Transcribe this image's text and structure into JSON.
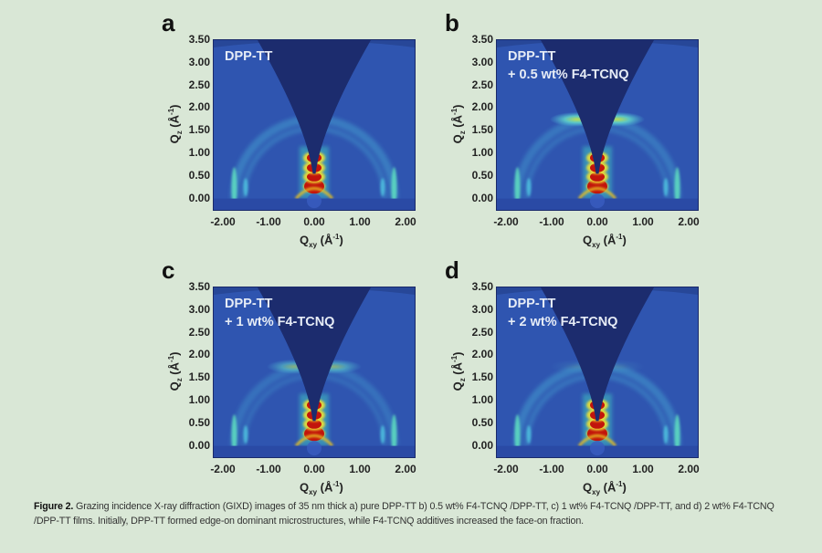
{
  "figure": {
    "caption_label": "Figure 2.",
    "caption_text": "Grazing incidence X-ray diffraction (GIXD) images of 35 nm thick a) pure DPP-TT b) 0.5 wt% F4-TCNQ /DPP-TT, c) 1 wt% F4-TCNQ /DPP-TT, and d) 2 wt% F4-TCNQ /DPP-TT films. Initially, DPP-TT formed edge-on dominant microstructures, while F4-TCNQ additives increased the face-on fraction.",
    "colors": {
      "background": "#d9e7d6",
      "plot_bg": "#2f55b0",
      "shadow": "#1c2c6e",
      "ring": "#4fc2e0",
      "hot": "#c2140c"
    }
  },
  "chart_data": [
    {
      "type": "heatmap",
      "panel": "a",
      "title": "DPP-TT",
      "xlabel": "Qxy (Å-1)",
      "ylabel": "Qz (Å-1)",
      "xticks": [
        "-2.00",
        "-1.00",
        "0.00",
        "1.00",
        "2.00"
      ],
      "yticks": [
        "3.50",
        "3.00",
        "2.50",
        "2.00",
        "1.50",
        "1.00",
        "0.50",
        "0.00"
      ],
      "xlim": [
        -2.2,
        2.2
      ],
      "ylim": [
        -0.25,
        3.5
      ],
      "features": {
        "ring_q": 1.75,
        "ring_intensity": 0.35,
        "face_on_peak_qz": 1.75,
        "face_on_intensity": 0.0,
        "lamellar_peaks_qz": [
          0.27,
          0.48,
          0.68,
          0.9
        ],
        "inplane_peaks_qxy": [
          1.5,
          1.75
        ]
      }
    },
    {
      "type": "heatmap",
      "panel": "b",
      "title": "DPP-TT\n+ 0.5 wt% F4-TCNQ",
      "xlabel": "Qxy (Å-1)",
      "ylabel": "Qz (Å-1)",
      "xticks": [
        "-2.00",
        "-1.00",
        "0.00",
        "1.00",
        "2.00"
      ],
      "yticks": [
        "3.50",
        "3.00",
        "2.50",
        "2.00",
        "1.50",
        "1.00",
        "0.50",
        "0.00"
      ],
      "xlim": [
        -2.2,
        2.2
      ],
      "ylim": [
        -0.25,
        3.5
      ],
      "features": {
        "ring_q": 1.75,
        "ring_intensity": 0.3,
        "face_on_peak_qz": 1.75,
        "face_on_intensity": 0.9,
        "lamellar_peaks_qz": [
          0.27,
          0.48,
          0.68,
          0.9
        ],
        "inplane_peaks_qxy": [
          1.5,
          1.75
        ]
      }
    },
    {
      "type": "heatmap",
      "panel": "c",
      "title": "DPP-TT\n+ 1 wt% F4-TCNQ",
      "xlabel": "Qxy (Å-1)",
      "ylabel": "Qz (Å-1)",
      "xticks": [
        "-2.00",
        "-1.00",
        "0.00",
        "1.00",
        "2.00"
      ],
      "yticks": [
        "3.50",
        "3.00",
        "2.50",
        "2.00",
        "1.50",
        "1.00",
        "0.50",
        "0.00"
      ],
      "xlim": [
        -2.2,
        2.2
      ],
      "ylim": [
        -0.25,
        3.5
      ],
      "features": {
        "ring_q": 1.75,
        "ring_intensity": 0.25,
        "face_on_peak_qz": 1.75,
        "face_on_intensity": 0.55,
        "lamellar_peaks_qz": [
          0.27,
          0.48,
          0.68,
          0.9
        ],
        "inplane_peaks_qxy": [
          1.5,
          1.75
        ]
      }
    },
    {
      "type": "heatmap",
      "panel": "d",
      "title": "DPP-TT\n+ 2 wt% F4-TCNQ",
      "xlabel": "Qxy (Å-1)",
      "ylabel": "Qz (Å-1)",
      "xticks": [
        "-2.00",
        "-1.00",
        "0.00",
        "1.00",
        "2.00"
      ],
      "yticks": [
        "3.50",
        "3.00",
        "2.50",
        "2.00",
        "1.50",
        "1.00",
        "0.50",
        "0.00"
      ],
      "xlim": [
        -2.2,
        2.2
      ],
      "ylim": [
        -0.25,
        3.5
      ],
      "features": {
        "ring_q": 1.75,
        "ring_intensity": 0.35,
        "face_on_peak_qz": 1.75,
        "face_on_intensity": 0.1,
        "lamellar_peaks_qz": [
          0.27,
          0.48,
          0.68,
          0.9
        ],
        "inplane_peaks_qxy": [
          1.5,
          1.75
        ]
      }
    }
  ]
}
